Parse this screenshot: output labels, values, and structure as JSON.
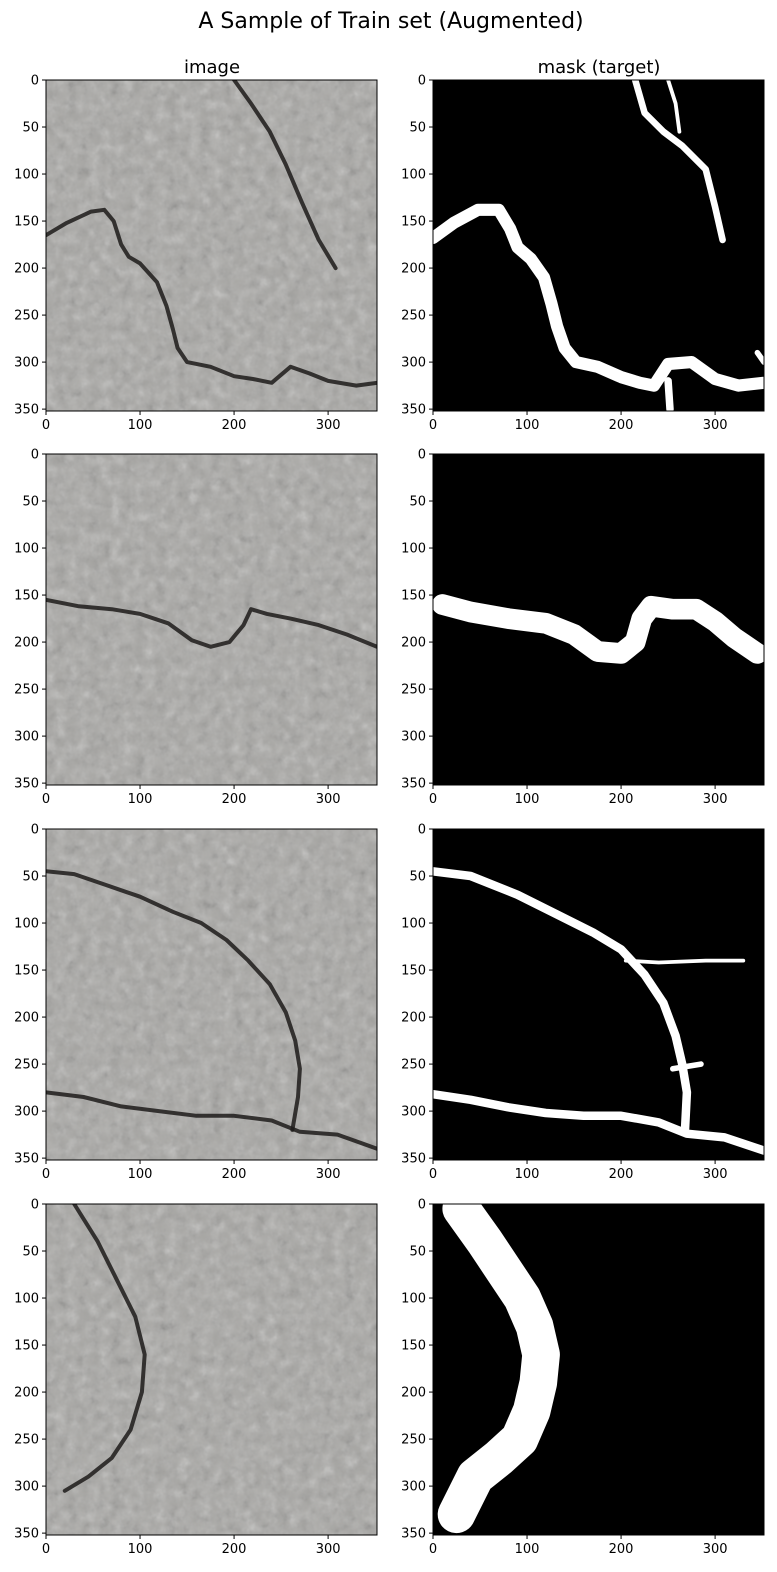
{
  "figure": {
    "title": "A Sample of Train set (Augmented)",
    "column_titles": [
      "image",
      "mask (target)"
    ]
  },
  "colors": {
    "mask_background": "#000000",
    "mask_foreground": "#ffffff",
    "asphalt_light": "#a7a6a3",
    "asphalt_dark": "#4d4b49",
    "crack": "#1d1b1a"
  },
  "chart_data": [
    {
      "type": "image",
      "row": 1,
      "column": "image",
      "content": "asphalt photo with crack",
      "xticks": [
        0,
        100,
        200,
        300
      ],
      "yticks": [
        0,
        50,
        100,
        150,
        200,
        250,
        300,
        350
      ],
      "xlim": [
        0,
        352
      ],
      "ylim": [
        352,
        0
      ],
      "crack_paths": [
        [
          [
            0,
            165
          ],
          [
            22,
            152
          ],
          [
            48,
            140
          ],
          [
            62,
            138
          ],
          [
            72,
            150
          ],
          [
            80,
            175
          ],
          [
            88,
            188
          ],
          [
            100,
            195
          ],
          [
            118,
            215
          ],
          [
            128,
            240
          ],
          [
            135,
            265
          ],
          [
            140,
            285
          ],
          [
            150,
            300
          ],
          [
            175,
            305
          ],
          [
            200,
            315
          ],
          [
            220,
            318
          ],
          [
            240,
            322
          ],
          [
            260,
            305
          ],
          [
            280,
            312
          ],
          [
            300,
            320
          ],
          [
            330,
            325
          ],
          [
            352,
            322
          ]
        ],
        [
          [
            200,
            0
          ],
          [
            218,
            25
          ],
          [
            238,
            55
          ],
          [
            255,
            90
          ],
          [
            272,
            130
          ],
          [
            290,
            170
          ],
          [
            308,
            200
          ]
        ]
      ]
    },
    {
      "type": "image",
      "row": 1,
      "column": "mask (target)",
      "content": "binary crack mask",
      "xticks": [
        0,
        100,
        200,
        300
      ],
      "yticks": [
        0,
        50,
        100,
        150,
        200,
        250,
        300,
        350
      ],
      "xlim": [
        0,
        352
      ],
      "ylim": [
        352,
        0
      ],
      "crack_paths": [
        [
          [
            0,
            168
          ],
          [
            22,
            152
          ],
          [
            48,
            138
          ],
          [
            70,
            138
          ],
          [
            82,
            158
          ],
          [
            90,
            178
          ],
          [
            104,
            190
          ],
          [
            118,
            210
          ],
          [
            126,
            238
          ],
          [
            132,
            262
          ],
          [
            140,
            285
          ],
          [
            152,
            300
          ],
          [
            175,
            305
          ],
          [
            200,
            316
          ],
          [
            220,
            322
          ],
          [
            235,
            325
          ],
          [
            250,
            302
          ],
          [
            275,
            300
          ],
          [
            300,
            318
          ],
          [
            325,
            325
          ],
          [
            352,
            322
          ]
        ],
        [
          [
            215,
            0
          ],
          [
            225,
            35
          ],
          [
            245,
            55
          ],
          [
            265,
            70
          ],
          [
            290,
            95
          ],
          [
            300,
            135
          ],
          [
            308,
            170
          ]
        ],
        [
          [
            250,
            0
          ],
          [
            258,
            25
          ],
          [
            262,
            55
          ]
        ],
        [
          [
            250,
            320
          ],
          [
            252,
            350
          ]
        ],
        [
          [
            345,
            290
          ],
          [
            352,
            300
          ]
        ]
      ],
      "stroke_widths": [
        13,
        7,
        4,
        8,
        6
      ]
    },
    {
      "type": "image",
      "row": 2,
      "column": "image",
      "content": "asphalt photo with crack",
      "xticks": [
        0,
        100,
        200,
        300
      ],
      "yticks": [
        0,
        50,
        100,
        150,
        200,
        250,
        300,
        350
      ],
      "xlim": [
        0,
        352
      ],
      "ylim": [
        352,
        0
      ],
      "crack_paths": [
        [
          [
            0,
            155
          ],
          [
            35,
            162
          ],
          [
            70,
            165
          ],
          [
            100,
            170
          ],
          [
            130,
            180
          ],
          [
            155,
            198
          ],
          [
            175,
            205
          ],
          [
            195,
            200
          ],
          [
            210,
            182
          ],
          [
            218,
            165
          ],
          [
            235,
            170
          ],
          [
            260,
            175
          ],
          [
            290,
            182
          ],
          [
            320,
            192
          ],
          [
            352,
            205
          ]
        ]
      ]
    },
    {
      "type": "image",
      "row": 2,
      "column": "mask (target)",
      "content": "binary crack mask",
      "xticks": [
        0,
        100,
        200,
        300
      ],
      "yticks": [
        0,
        50,
        100,
        150,
        200,
        250,
        300,
        350
      ],
      "xlim": [
        0,
        352
      ],
      "ylim": [
        352,
        0
      ],
      "crack_paths": [
        [
          [
            10,
            160
          ],
          [
            40,
            168
          ],
          [
            80,
            175
          ],
          [
            120,
            180
          ],
          [
            150,
            192
          ],
          [
            175,
            210
          ],
          [
            200,
            212
          ],
          [
            215,
            200
          ],
          [
            222,
            175
          ],
          [
            232,
            162
          ],
          [
            255,
            165
          ],
          [
            280,
            165
          ],
          [
            300,
            178
          ],
          [
            320,
            195
          ],
          [
            345,
            212
          ]
        ]
      ],
      "stroke_widths": [
        22
      ]
    },
    {
      "type": "image",
      "row": 3,
      "column": "image",
      "content": "asphalt photo with crack",
      "xticks": [
        0,
        100,
        200,
        300
      ],
      "yticks": [
        0,
        50,
        100,
        150,
        200,
        250,
        300,
        350
      ],
      "xlim": [
        0,
        352
      ],
      "ylim": [
        352,
        0
      ],
      "crack_paths": [
        [
          [
            0,
            45
          ],
          [
            30,
            48
          ],
          [
            65,
            60
          ],
          [
            100,
            72
          ],
          [
            135,
            88
          ],
          [
            165,
            100
          ],
          [
            192,
            118
          ],
          [
            215,
            140
          ],
          [
            238,
            165
          ],
          [
            255,
            195
          ],
          [
            265,
            225
          ],
          [
            270,
            255
          ],
          [
            268,
            285
          ],
          [
            262,
            320
          ]
        ],
        [
          [
            0,
            280
          ],
          [
            40,
            285
          ],
          [
            80,
            295
          ],
          [
            120,
            300
          ],
          [
            160,
            305
          ],
          [
            200,
            305
          ],
          [
            240,
            310
          ],
          [
            270,
            322
          ],
          [
            310,
            325
          ],
          [
            352,
            340
          ]
        ]
      ]
    },
    {
      "type": "image",
      "row": 3,
      "column": "mask (target)",
      "content": "binary crack mask",
      "xticks": [
        0,
        100,
        200,
        300
      ],
      "yticks": [
        0,
        50,
        100,
        150,
        200,
        250,
        300,
        350
      ],
      "xlim": [
        0,
        352
      ],
      "ylim": [
        352,
        0
      ],
      "crack_paths": [
        [
          [
            0,
            45
          ],
          [
            40,
            50
          ],
          [
            90,
            70
          ],
          [
            130,
            90
          ],
          [
            170,
            110
          ],
          [
            200,
            128
          ],
          [
            225,
            155
          ],
          [
            245,
            185
          ],
          [
            258,
            220
          ],
          [
            265,
            250
          ],
          [
            270,
            280
          ],
          [
            268,
            320
          ]
        ],
        [
          [
            0,
            282
          ],
          [
            40,
            288
          ],
          [
            80,
            296
          ],
          [
            120,
            302
          ],
          [
            160,
            305
          ],
          [
            200,
            305
          ],
          [
            240,
            312
          ],
          [
            270,
            324
          ],
          [
            310,
            328
          ],
          [
            352,
            342
          ]
        ],
        [
          [
            205,
            140
          ],
          [
            240,
            142
          ],
          [
            290,
            140
          ],
          [
            330,
            140
          ]
        ],
        [
          [
            255,
            255
          ],
          [
            285,
            250
          ]
        ]
      ],
      "stroke_widths": [
        9,
        9,
        4,
        6
      ]
    },
    {
      "type": "image",
      "row": 4,
      "column": "image",
      "content": "asphalt photo with crack",
      "xticks": [
        0,
        100,
        200,
        300
      ],
      "yticks": [
        0,
        50,
        100,
        150,
        200,
        250,
        300,
        350
      ],
      "xlim": [
        0,
        352
      ],
      "ylim": [
        352,
        0
      ],
      "crack_paths": [
        [
          [
            30,
            0
          ],
          [
            55,
            40
          ],
          [
            75,
            80
          ],
          [
            95,
            120
          ],
          [
            105,
            160
          ],
          [
            102,
            200
          ],
          [
            90,
            240
          ],
          [
            70,
            270
          ],
          [
            45,
            290
          ],
          [
            20,
            305
          ]
        ]
      ]
    },
    {
      "type": "image",
      "row": 4,
      "column": "mask (target)",
      "content": "binary crack mask",
      "xticks": [
        0,
        100,
        200,
        300
      ],
      "yticks": [
        0,
        50,
        100,
        150,
        200,
        250,
        300,
        350
      ],
      "xlim": [
        0,
        352
      ],
      "ylim": [
        352,
        0
      ],
      "crack_paths": [
        [
          [
            30,
            5
          ],
          [
            55,
            40
          ],
          [
            75,
            70
          ],
          [
            95,
            100
          ],
          [
            108,
            130
          ],
          [
            115,
            160
          ],
          [
            112,
            190
          ],
          [
            105,
            220
          ],
          [
            92,
            250
          ],
          [
            70,
            270
          ],
          [
            45,
            290
          ],
          [
            25,
            330
          ]
        ]
      ],
      "stroke_widths": [
        40
      ]
    }
  ]
}
